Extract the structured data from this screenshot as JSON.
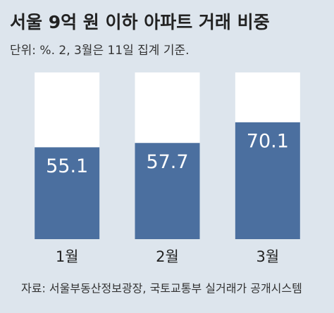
{
  "chart_data": {
    "type": "bar",
    "title": "서울 9억 원 이하 아파트 거래 비중",
    "subtitle": "단위: %. 2, 3월은 11일 집계 기준.",
    "categories": [
      "1월",
      "2월",
      "3월"
    ],
    "values": [
      55.1,
      57.7,
      70.1
    ],
    "color": "#4b6f9f",
    "ylim": [
      0,
      100
    ],
    "source": "자료: 서울부동산정보광장, 국토교통부 실거래가 공개시스템"
  }
}
